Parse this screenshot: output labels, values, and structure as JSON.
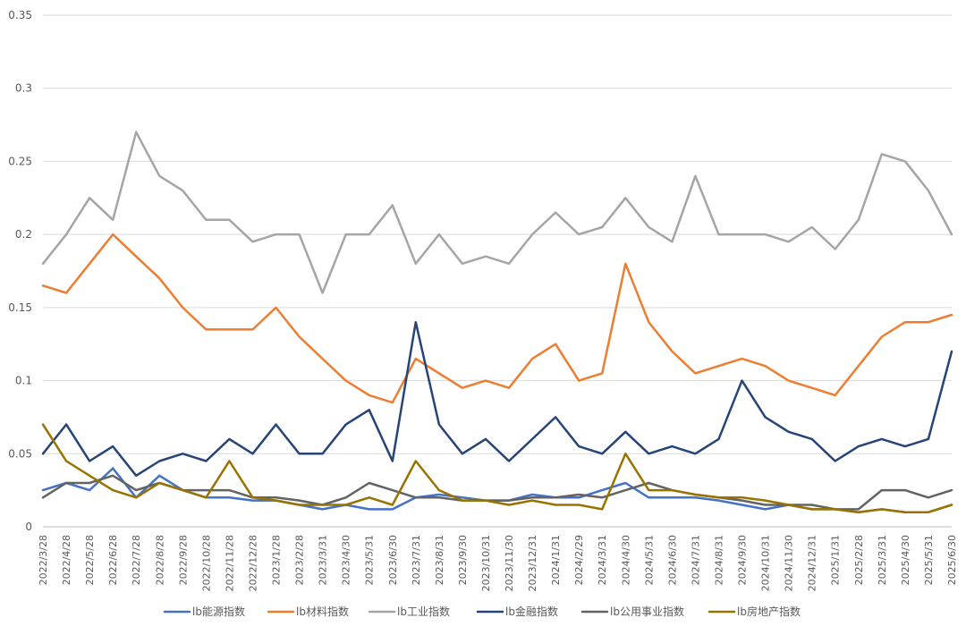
{
  "chart_data": {
    "type": "line",
    "title": "",
    "xlabel": "",
    "ylabel": "",
    "ylim": [
      0,
      0.35
    ],
    "y_ticks": [
      {
        "value": 0,
        "label": "0"
      },
      {
        "value": 0.05,
        "label": "0.05"
      },
      {
        "value": 0.1,
        "label": "0.1"
      },
      {
        "value": 0.15,
        "label": "0.15"
      },
      {
        "value": 0.2,
        "label": "0.2"
      },
      {
        "value": 0.25,
        "label": "0.25"
      },
      {
        "value": 0.3,
        "label": "0.3"
      },
      {
        "value": 0.35,
        "label": "0.35"
      }
    ],
    "x_tick_labels": [
      "2022/3/28",
      "2022/4/28",
      "2022/5/28",
      "2022/6/28",
      "2022/7/28",
      "2022/8/28",
      "2022/9/28",
      "2022/10/28",
      "2022/11/28",
      "2022/12/28",
      "2023/1/28",
      "2023/2/28",
      "2023/3/31",
      "2023/4/30",
      "2023/5/31",
      "2023/6/30",
      "2023/7/31",
      "2023/8/31",
      "2023/9/30",
      "2023/10/31",
      "2023/11/30",
      "2023/12/31",
      "2024/1/31",
      "2024/2/29",
      "2024/3/31",
      "2024/4/30",
      "2024/5/31",
      "2024/6/30",
      "2024/7/31",
      "2024/8/31",
      "2024/9/30",
      "2024/10/31",
      "2024/11/30",
      "2024/12/31",
      "2025/1/31",
      "2025/2/28",
      "2025/3/31",
      "2025/4/30",
      "2025/5/31",
      "2025/6/30"
    ],
    "grid": true,
    "legend_position": "bottom",
    "x": [
      "2022/3/28",
      "2022/4/28",
      "2022/5/28",
      "2022/6/28",
      "2022/7/28",
      "2022/8/28",
      "2022/9/28",
      "2022/10/28",
      "2022/11/28",
      "2022/12/28",
      "2023/1/28",
      "2023/2/28",
      "2023/3/31",
      "2023/4/30",
      "2023/5/31",
      "2023/6/30",
      "2023/7/31",
      "2023/8/31",
      "2023/9/30",
      "2023/10/31",
      "2023/11/30",
      "2023/12/31",
      "2024/1/31",
      "2024/2/29",
      "2024/3/31",
      "2024/4/30",
      "2024/5/31",
      "2024/6/30",
      "2024/7/31",
      "2024/8/31",
      "2024/9/30",
      "2024/10/31",
      "2024/11/30",
      "2024/12/31",
      "2025/1/31",
      "2025/2/28",
      "2025/3/31",
      "2025/4/30",
      "2025/5/31",
      "2025/6/30"
    ],
    "series": [
      {
        "name": "lb能源指数",
        "color": "#4472c4",
        "values": [
          0.025,
          0.03,
          0.025,
          0.04,
          0.02,
          0.035,
          0.025,
          0.02,
          0.02,
          0.018,
          0.018,
          0.015,
          0.012,
          0.015,
          0.012,
          0.012,
          0.02,
          0.022,
          0.02,
          0.018,
          0.018,
          0.022,
          0.02,
          0.02,
          0.025,
          0.03,
          0.02,
          0.02,
          0.02,
          0.018,
          0.015,
          0.012,
          0.015,
          0.012,
          0.012,
          0.01,
          0.012,
          0.01,
          0.01,
          0.015
        ]
      },
      {
        "name": "lb材料指数",
        "color": "#ed7d31",
        "values": [
          0.165,
          0.16,
          0.18,
          0.2,
          0.185,
          0.17,
          0.15,
          0.135,
          0.135,
          0.135,
          0.15,
          0.13,
          0.115,
          0.1,
          0.09,
          0.085,
          0.115,
          0.105,
          0.095,
          0.1,
          0.095,
          0.115,
          0.125,
          0.1,
          0.105,
          0.18,
          0.14,
          0.12,
          0.105,
          0.11,
          0.115,
          0.11,
          0.1,
          0.095,
          0.09,
          0.11,
          0.13,
          0.14,
          0.14,
          0.145
        ]
      },
      {
        "name": "lb工业指数",
        "color": "#a5a5a5",
        "values": [
          0.18,
          0.2,
          0.225,
          0.21,
          0.27,
          0.24,
          0.23,
          0.21,
          0.21,
          0.195,
          0.2,
          0.2,
          0.16,
          0.2,
          0.2,
          0.22,
          0.18,
          0.2,
          0.18,
          0.185,
          0.18,
          0.2,
          0.215,
          0.2,
          0.205,
          0.225,
          0.205,
          0.195,
          0.24,
          0.2,
          0.2,
          0.2,
          0.195,
          0.205,
          0.19,
          0.21,
          0.255,
          0.25,
          0.23,
          0.2
        ]
      },
      {
        "name": "lb金融指数",
        "color": "#264478",
        "values": [
          0.05,
          0.07,
          0.045,
          0.055,
          0.035,
          0.045,
          0.05,
          0.045,
          0.06,
          0.05,
          0.07,
          0.05,
          0.05,
          0.07,
          0.08,
          0.045,
          0.14,
          0.07,
          0.05,
          0.06,
          0.045,
          0.06,
          0.075,
          0.055,
          0.05,
          0.065,
          0.05,
          0.055,
          0.05,
          0.06,
          0.1,
          0.075,
          0.065,
          0.06,
          0.045,
          0.055,
          0.06,
          0.055,
          0.06,
          0.12
        ]
      },
      {
        "name": "lb公用事业指数",
        "color": "#636363",
        "values": [
          0.02,
          0.03,
          0.03,
          0.035,
          0.025,
          0.03,
          0.025,
          0.025,
          0.025,
          0.02,
          0.02,
          0.018,
          0.015,
          0.02,
          0.03,
          0.025,
          0.02,
          0.02,
          0.018,
          0.018,
          0.018,
          0.02,
          0.02,
          0.022,
          0.02,
          0.025,
          0.03,
          0.025,
          0.022,
          0.02,
          0.018,
          0.015,
          0.015,
          0.015,
          0.012,
          0.012,
          0.025,
          0.025,
          0.02,
          0.025
        ]
      },
      {
        "name": "lb房地产指数",
        "color": "#997300",
        "values": [
          0.07,
          0.045,
          0.035,
          0.025,
          0.02,
          0.03,
          0.025,
          0.02,
          0.045,
          0.02,
          0.018,
          0.015,
          0.015,
          0.015,
          0.02,
          0.015,
          0.045,
          0.025,
          0.018,
          0.018,
          0.015,
          0.018,
          0.015,
          0.015,
          0.012,
          0.05,
          0.025,
          0.025,
          0.022,
          0.02,
          0.02,
          0.018,
          0.015,
          0.012,
          0.012,
          0.01,
          0.012,
          0.01,
          0.01,
          0.015
        ]
      }
    ]
  }
}
